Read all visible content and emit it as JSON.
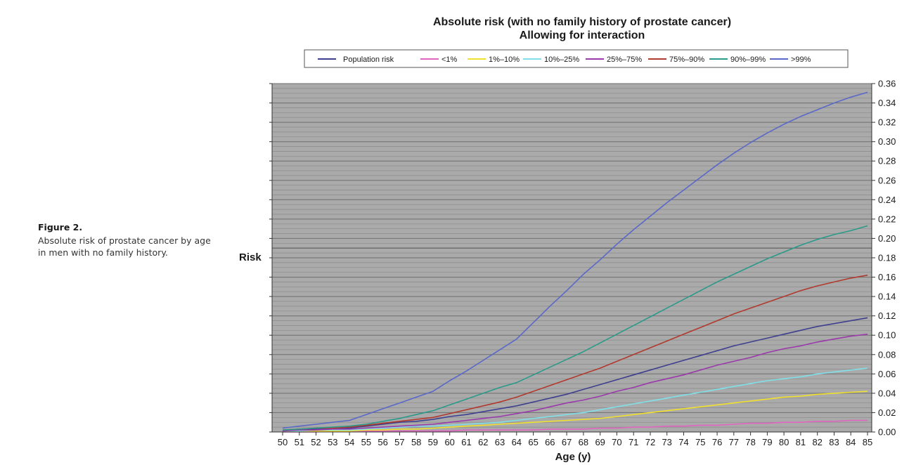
{
  "caption": {
    "label": "Figure 2.",
    "text": "Absolute risk of prostate cancer by age in men with no family history."
  },
  "chart_data": {
    "type": "line",
    "title": "Absolute risk (with no family history of prostate cancer)",
    "subtitle": "Allowing for interaction",
    "xlabel": "Age (y)",
    "ylabel": "Risk",
    "x": [
      50,
      51,
      52,
      53,
      54,
      55,
      56,
      57,
      58,
      59,
      60,
      61,
      62,
      63,
      64,
      65,
      66,
      67,
      68,
      69,
      70,
      71,
      72,
      73,
      74,
      75,
      76,
      77,
      78,
      79,
      80,
      81,
      82,
      83,
      84,
      85
    ],
    "ylim": [
      0,
      0.36
    ],
    "yticks": [
      "0.00",
      "0.02",
      "0.04",
      "0.06",
      "0.08",
      "0.10",
      "0.12",
      "0.14",
      "0.16",
      "0.18",
      "0.20",
      "0.22",
      "0.24",
      "0.26",
      "0.28",
      "0.30",
      "0.32",
      "0.34",
      "0.36"
    ],
    "y_axis_side": "right",
    "grid": true,
    "plot_background": "#aaaaaa",
    "legend_position": "top",
    "series": [
      {
        "name": "Population risk",
        "color": "#3f3f8f",
        "values": [
          0.001,
          0.002,
          0.003,
          0.003,
          0.004,
          0.006,
          0.008,
          0.01,
          0.011,
          0.013,
          0.016,
          0.018,
          0.021,
          0.024,
          0.027,
          0.031,
          0.035,
          0.039,
          0.044,
          0.049,
          0.054,
          0.059,
          0.064,
          0.069,
          0.074,
          0.079,
          0.084,
          0.089,
          0.093,
          0.097,
          0.101,
          0.105,
          0.109,
          0.112,
          0.115,
          0.118
        ]
      },
      {
        "name": "<1%",
        "color": "#e065c0",
        "values": [
          0.0,
          0.0,
          0.0,
          0.001,
          0.001,
          0.001,
          0.001,
          0.001,
          0.001,
          0.001,
          0.001,
          0.002,
          0.002,
          0.002,
          0.002,
          0.002,
          0.003,
          0.003,
          0.003,
          0.004,
          0.004,
          0.005,
          0.005,
          0.006,
          0.006,
          0.007,
          0.007,
          0.008,
          0.009,
          0.009,
          0.01,
          0.01,
          0.011,
          0.011,
          0.012,
          0.012
        ]
      },
      {
        "name": "1%–10%",
        "color": "#f0e030",
        "values": [
          0.0,
          0.001,
          0.001,
          0.001,
          0.001,
          0.002,
          0.002,
          0.003,
          0.003,
          0.004,
          0.005,
          0.006,
          0.007,
          0.008,
          0.009,
          0.01,
          0.011,
          0.012,
          0.013,
          0.014,
          0.016,
          0.018,
          0.02,
          0.022,
          0.024,
          0.026,
          0.028,
          0.03,
          0.032,
          0.034,
          0.036,
          0.037,
          0.039,
          0.04,
          0.041,
          0.042
        ]
      },
      {
        "name": "10%–25%",
        "color": "#80e0e8",
        "values": [
          0.001,
          0.001,
          0.002,
          0.002,
          0.002,
          0.003,
          0.004,
          0.005,
          0.006,
          0.006,
          0.007,
          0.008,
          0.009,
          0.01,
          0.012,
          0.014,
          0.016,
          0.018,
          0.02,
          0.023,
          0.026,
          0.029,
          0.032,
          0.035,
          0.038,
          0.041,
          0.044,
          0.047,
          0.05,
          0.053,
          0.055,
          0.057,
          0.06,
          0.062,
          0.064,
          0.066
        ]
      },
      {
        "name": "25%–75%",
        "color": "#9a3aaa",
        "values": [
          0.001,
          0.002,
          0.002,
          0.003,
          0.003,
          0.004,
          0.005,
          0.006,
          0.007,
          0.008,
          0.01,
          0.012,
          0.014,
          0.016,
          0.019,
          0.022,
          0.026,
          0.03,
          0.033,
          0.037,
          0.042,
          0.046,
          0.051,
          0.055,
          0.059,
          0.064,
          0.069,
          0.073,
          0.077,
          0.082,
          0.086,
          0.089,
          0.093,
          0.096,
          0.099,
          0.101
        ]
      },
      {
        "name": "75%–90%",
        "color": "#b03a2e",
        "values": [
          0.002,
          0.003,
          0.004,
          0.004,
          0.005,
          0.007,
          0.009,
          0.011,
          0.013,
          0.015,
          0.019,
          0.023,
          0.027,
          0.031,
          0.036,
          0.042,
          0.048,
          0.054,
          0.06,
          0.066,
          0.073,
          0.08,
          0.087,
          0.094,
          0.101,
          0.108,
          0.115,
          0.122,
          0.128,
          0.134,
          0.14,
          0.146,
          0.151,
          0.155,
          0.159,
          0.162
        ]
      },
      {
        "name": "90%–99%",
        "color": "#2a9a8a",
        "values": [
          0.002,
          0.003,
          0.004,
          0.005,
          0.006,
          0.008,
          0.011,
          0.014,
          0.018,
          0.022,
          0.028,
          0.034,
          0.04,
          0.046,
          0.051,
          0.059,
          0.067,
          0.075,
          0.083,
          0.092,
          0.101,
          0.11,
          0.119,
          0.128,
          0.137,
          0.146,
          0.155,
          0.163,
          0.171,
          0.179,
          0.186,
          0.193,
          0.199,
          0.204,
          0.208,
          0.213
        ]
      },
      {
        "name": ">99%",
        "color": "#5a68c8",
        "values": [
          0.004,
          0.006,
          0.008,
          0.01,
          0.012,
          0.018,
          0.024,
          0.03,
          0.036,
          0.042,
          0.053,
          0.063,
          0.074,
          0.085,
          0.096,
          0.113,
          0.13,
          0.146,
          0.163,
          0.178,
          0.194,
          0.209,
          0.223,
          0.237,
          0.25,
          0.263,
          0.276,
          0.288,
          0.299,
          0.309,
          0.318,
          0.326,
          0.333,
          0.34,
          0.346,
          0.351
        ]
      }
    ]
  }
}
